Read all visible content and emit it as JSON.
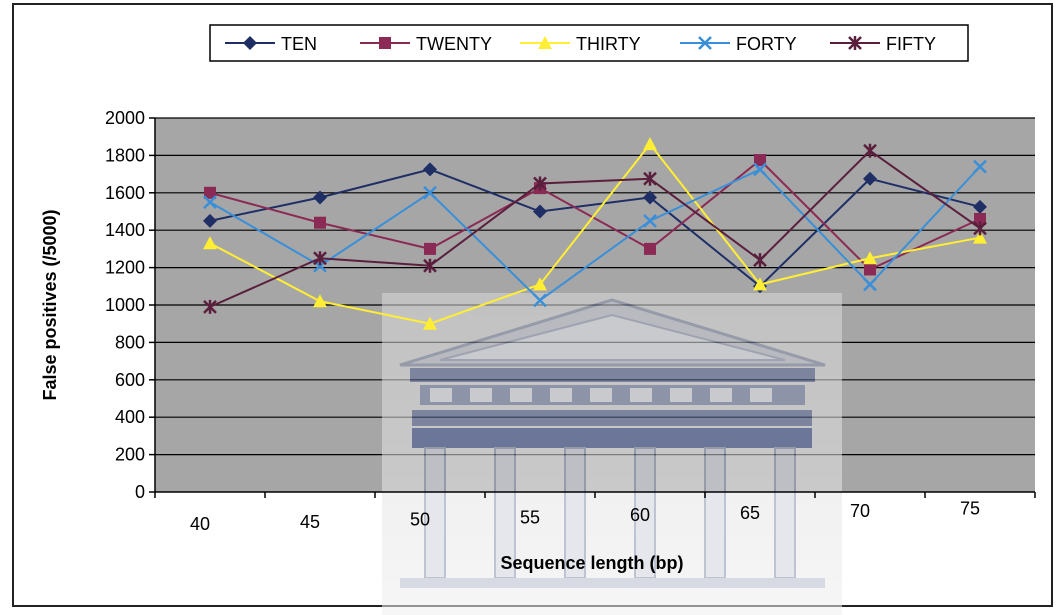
{
  "chart_data": {
    "type": "line",
    "xlabel": "Sequence length (bp)",
    "ylabel": "False positives (/5000)",
    "categories": [
      "40",
      "45",
      "50",
      "55",
      "60",
      "65",
      "70",
      "75"
    ],
    "ylim": [
      0,
      2000
    ],
    "yticks": [
      0,
      200,
      400,
      600,
      800,
      1000,
      1200,
      1400,
      1600,
      1800,
      2000
    ],
    "grid": true,
    "legend_position": "top",
    "series": [
      {
        "name": "TEN",
        "color": "#1f2f66",
        "marker": "diamond",
        "values": [
          1450,
          1575,
          1725,
          1500,
          1575,
          1100,
          1675,
          1525
        ]
      },
      {
        "name": "TWENTY",
        "color": "#8b2a55",
        "marker": "square",
        "values": [
          1600,
          1440,
          1300,
          1625,
          1300,
          1775,
          1190,
          1460
        ]
      },
      {
        "name": "THIRTY",
        "color": "#ffee33",
        "marker": "triangle",
        "values": [
          1330,
          1020,
          900,
          1110,
          1860,
          1110,
          1250,
          1360
        ]
      },
      {
        "name": "FORTY",
        "color": "#3a8fd9",
        "marker": "x",
        "values": [
          1550,
          1210,
          1600,
          1025,
          1450,
          1725,
          1110,
          1740
        ]
      },
      {
        "name": "FIFTY",
        "color": "#5a1f3d",
        "marker": "star",
        "values": [
          990,
          1250,
          1210,
          1650,
          1675,
          1240,
          1825,
          1410
        ]
      }
    ]
  }
}
